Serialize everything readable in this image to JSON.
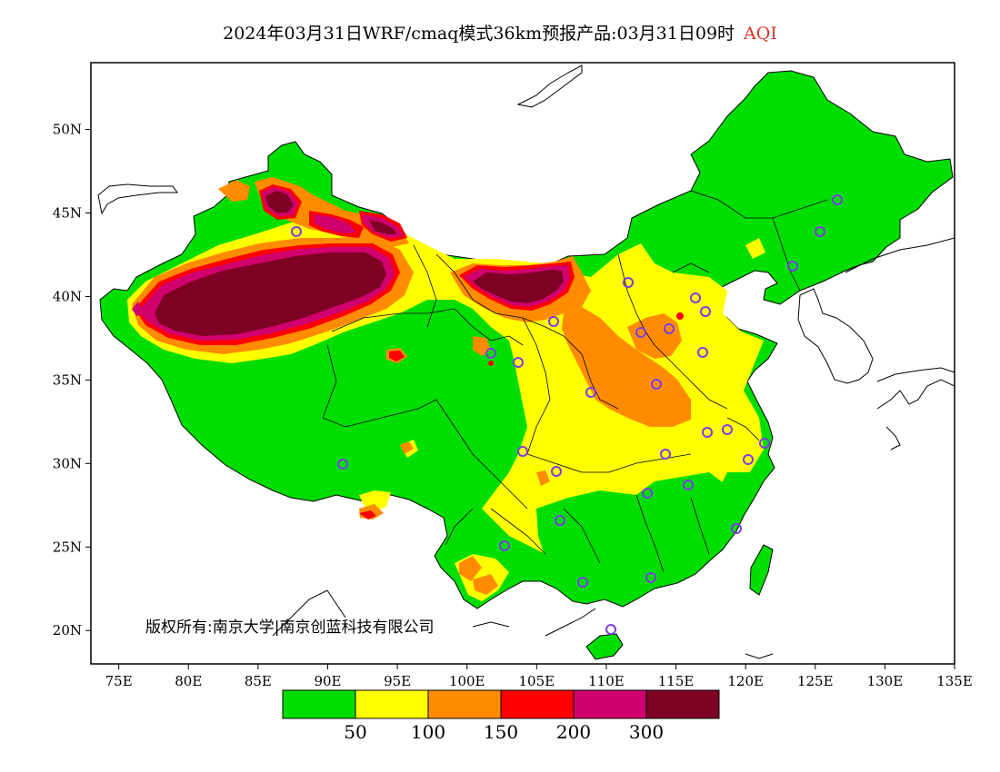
{
  "title": {
    "main": "2024年03月31日WRF/cmaq模式36km预报产品:03月31日09时",
    "variable": "AQI"
  },
  "copyright": "版权所有:南京大学|南京创蓝科技有限公司",
  "map": {
    "lon_range": [
      73,
      135
    ],
    "lat_range": [
      18,
      54
    ],
    "x_ticks": [
      "75E",
      "80E",
      "85E",
      "90E",
      "95E",
      "100E",
      "105E",
      "110E",
      "115E",
      "120E",
      "125E",
      "130E",
      "135E"
    ],
    "y_ticks": [
      "20N",
      "25N",
      "30N",
      "35N",
      "40N",
      "45N",
      "50N"
    ]
  },
  "colorbar": {
    "colors": [
      "#00dd00",
      "#ffff00",
      "#ff8c00",
      "#ff0000",
      "#d0006f",
      "#7e0023"
    ],
    "labels": [
      "50",
      "100",
      "150",
      "200",
      "300"
    ]
  },
  "stations_count_note": "",
  "colors": {
    "good": "#00dd00",
    "moderate": "#ffff00",
    "usg": "#ff8c00",
    "unhealthy": "#ff0000",
    "very_unhealthy": "#d0006f",
    "hazardous": "#7e0023",
    "station_marker": "#7b3fe4"
  }
}
